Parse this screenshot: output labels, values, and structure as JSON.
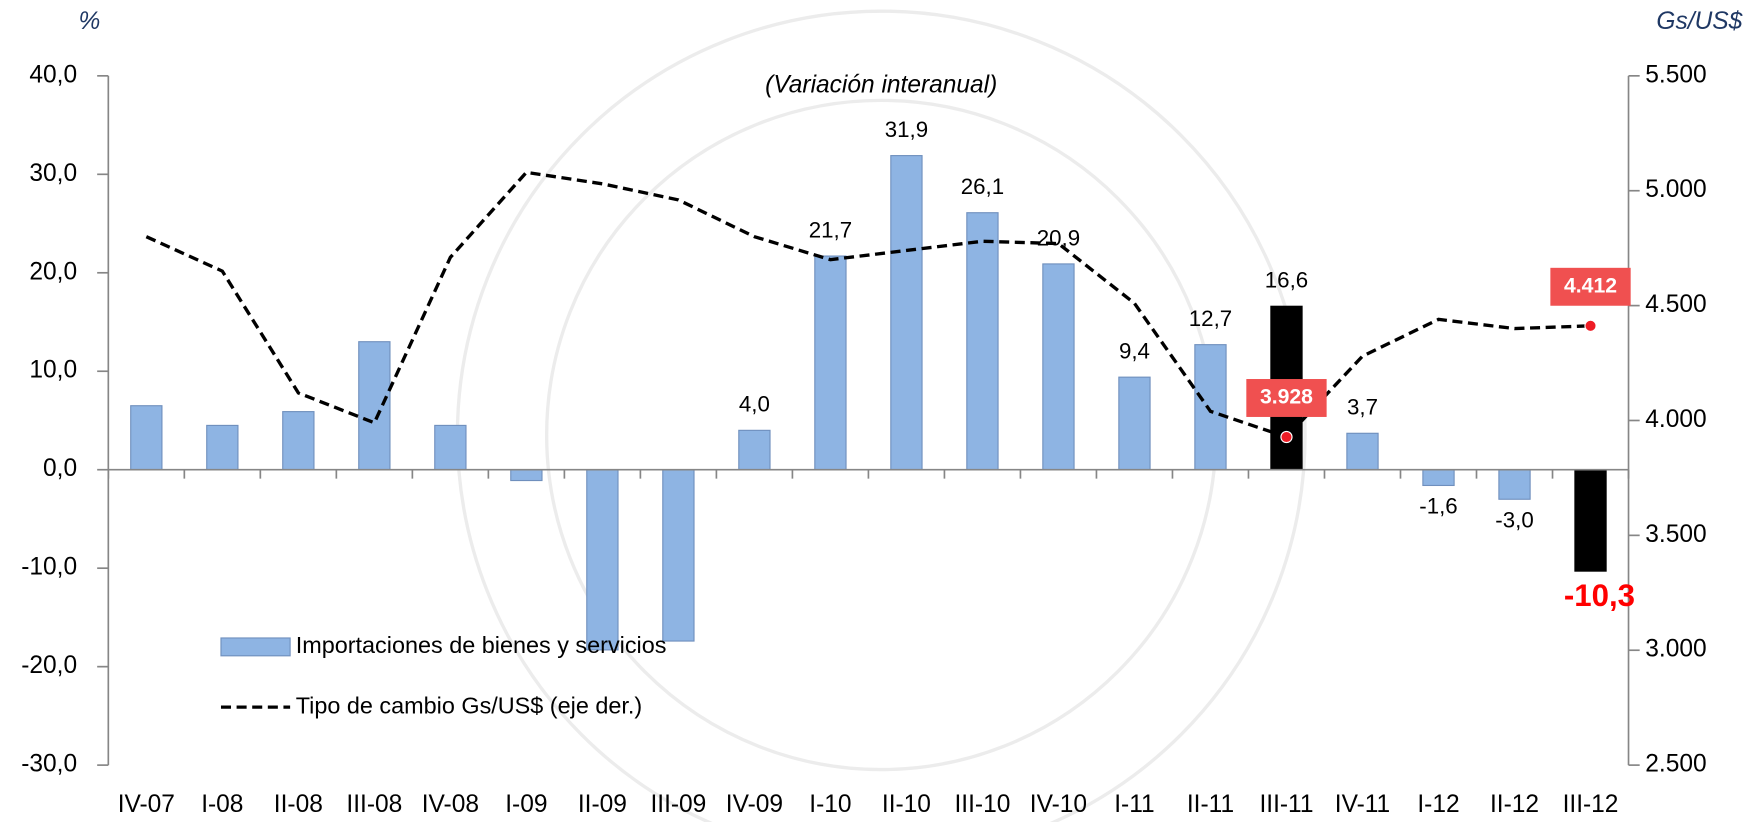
{
  "chart_data": {
    "type": "bar_line",
    "subtitle": "(Variación interanual)",
    "y_axis_label": "%",
    "y2_axis_label": "Gs/US$",
    "categories": [
      "IV-07",
      "I-08",
      "II-08",
      "III-08",
      "IV-08",
      "I-09",
      "II-09",
      "III-09",
      "IV-09",
      "I-10",
      "II-10",
      "III-10",
      "IV-10",
      "I-11",
      "II-11",
      "III-11",
      "IV-11",
      "I-12",
      "II-12",
      "III-12"
    ],
    "series": [
      {
        "name": "Importaciones de bienes y servicios",
        "type": "bar",
        "color": "#8eb4e3",
        "colors": [
          "#8eb4e3",
          "#8eb4e3",
          "#8eb4e3",
          "#8eb4e3",
          "#8eb4e3",
          "#8eb4e3",
          "#8eb4e3",
          "#8eb4e3",
          "#8eb4e3",
          "#8eb4e3",
          "#8eb4e3",
          "#8eb4e3",
          "#8eb4e3",
          "#8eb4e3",
          "#8eb4e3",
          "#000000",
          "#8eb4e3",
          "#8eb4e3",
          "#8eb4e3",
          "#000000"
        ],
        "values": [
          6.5,
          4.5,
          5.9,
          13.0,
          4.5,
          -1.1,
          -18.3,
          -17.4,
          4.0,
          21.7,
          31.9,
          26.1,
          20.9,
          9.4,
          12.7,
          16.6,
          3.7,
          -1.6,
          -3.0,
          -10.3
        ],
        "value_labels": [
          null,
          null,
          null,
          null,
          null,
          null,
          null,
          null,
          "4,0",
          "21,7",
          "31,9",
          "26,1",
          "20,9",
          "9,4",
          "12,7",
          "16,6",
          "3,7",
          "-1,6",
          "-3,0",
          "-10,3"
        ],
        "value_label_colors": [
          "#000000",
          "#000000",
          "#000000",
          "#000000",
          "#000000",
          "#000000",
          "#000000",
          "#000000",
          "#000000",
          "#000000",
          "#000000",
          "#000000",
          "#000000",
          "#000000",
          "#000000",
          "#000000",
          "#000000",
          "#000000",
          "#000000",
          "#ff0000"
        ]
      },
      {
        "name": "Tipo de cambio Gs/US$ (eje der.)",
        "type": "line",
        "axis": "y2",
        "color": "#000000",
        "dashed": true,
        "values": [
          4800,
          4650,
          4120,
          3990,
          4710,
          5080,
          5030,
          4960,
          4800,
          4700,
          4740,
          4780,
          4770,
          4510,
          4040,
          3928,
          4280,
          4440,
          4400,
          4412
        ],
        "value_labels": [
          null,
          null,
          null,
          null,
          null,
          null,
          null,
          null,
          null,
          null,
          null,
          null,
          null,
          null,
          null,
          "3.928",
          null,
          null,
          null,
          "4.412"
        ],
        "marker_color": "#ee1c25",
        "label_box_color": "#f05050"
      }
    ],
    "ylim": [
      -30,
      40
    ],
    "yticks": [
      {
        "value": -30,
        "label": "-30,0"
      },
      {
        "value": -20,
        "label": "-20,0"
      },
      {
        "value": -10,
        "label": "-10,0"
      },
      {
        "value": 0,
        "label": "0,0"
      },
      {
        "value": 10,
        "label": "10,0"
      },
      {
        "value": 20,
        "label": "20,0"
      },
      {
        "value": 30,
        "label": "30,0"
      },
      {
        "value": 40,
        "label": "40,0"
      }
    ],
    "y2lim": [
      2500,
      5500
    ],
    "y2ticks": [
      {
        "value": 2500,
        "label": "2.500"
      },
      {
        "value": 3000,
        "label": "3.000"
      },
      {
        "value": 3500,
        "label": "3.500"
      },
      {
        "value": 4000,
        "label": "4.000"
      },
      {
        "value": 4500,
        "label": "4.500"
      },
      {
        "value": 5000,
        "label": "5.000"
      },
      {
        "value": 5500,
        "label": "5.500"
      }
    ],
    "legend": "lower left",
    "grid": false
  }
}
